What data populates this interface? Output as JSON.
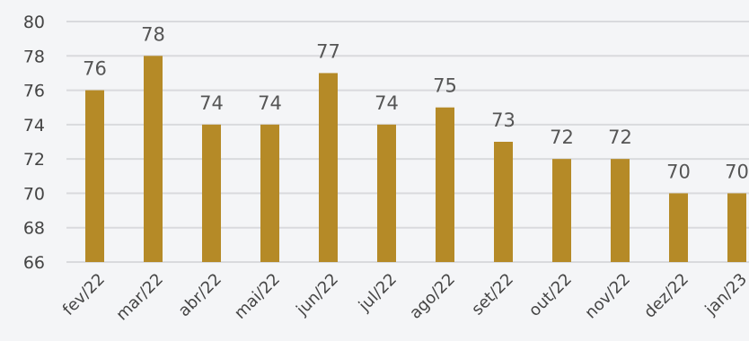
{
  "chart_data": {
    "type": "bar",
    "title": "",
    "xlabel": "",
    "ylabel": "",
    "categories": [
      "fev/22",
      "mar/22",
      "abr/22",
      "mai/22",
      "jun/22",
      "jul/22",
      "ago/22",
      "set/22",
      "out/22",
      "nov/22",
      "dez/22",
      "jan/23"
    ],
    "series": [
      {
        "values": [
          76,
          78,
          74,
          74,
          77,
          74,
          75,
          73,
          72,
          72,
          70,
          70
        ]
      }
    ],
    "ylim": [
      66,
      80
    ],
    "yticks": [
      66,
      68,
      70,
      72,
      74,
      76,
      78,
      80
    ],
    "grid": true,
    "data_labels": true,
    "colors": {
      "bar": "#b58a27",
      "grid": "#d9dadd",
      "text": "#444444",
      "background": "#f4f5f7"
    }
  }
}
